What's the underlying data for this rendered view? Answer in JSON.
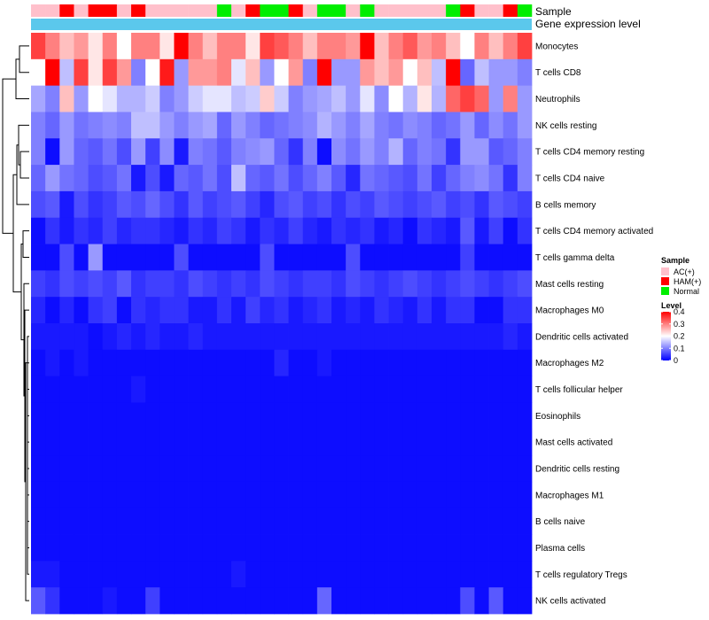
{
  "chart_data": {
    "type": "heatmap",
    "title": "",
    "rows": [
      "Monocytes",
      "T cells CD8",
      "Neutrophils",
      "NK cells resting",
      "T cells CD4 memory resting",
      "T cells CD4 naive",
      "B cells memory",
      "T cells CD4 memory activated",
      "T cells gamma delta",
      "Mast cells resting",
      "Macrophages M0",
      "Dendritic cells activated",
      "Macrophages M2",
      "T cells follicular helper",
      "Eosinophils",
      "Mast cells activated",
      "Dendritic cells resting",
      "Macrophages M1",
      "B cells naive",
      "Plasma cells",
      "T cells regulatory  Tregs",
      "NK cells activated"
    ],
    "n_samples": 35,
    "sample_groups": [
      "AC(+)",
      "AC(+)",
      "HAM(+)",
      "AC(+)",
      "HAM(+)",
      "HAM(+)",
      "AC(+)",
      "HAM(+)",
      "AC(+)",
      "AC(+)",
      "AC(+)",
      "AC(+)",
      "AC(+)",
      "Normal",
      "AC(+)",
      "HAM(+)",
      "Normal",
      "Normal",
      "HAM(+)",
      "AC(+)",
      "Normal",
      "Normal",
      "AC(+)",
      "Normal",
      "AC(+)",
      "AC(+)",
      "AC(+)",
      "AC(+)",
      "AC(+)",
      "Normal",
      "HAM(+)",
      "AC(+)",
      "AC(+)",
      "HAM(+)",
      "Normal"
    ],
    "values": [
      [
        0.35,
        0.3,
        0.25,
        0.28,
        0.22,
        0.3,
        0.2,
        0.3,
        0.3,
        0.22,
        0.4,
        0.3,
        0.25,
        0.3,
        0.3,
        0.22,
        0.35,
        0.33,
        0.3,
        0.25,
        0.3,
        0.3,
        0.28,
        0.4,
        0.25,
        0.3,
        0.33,
        0.28,
        0.3,
        0.25,
        0.2,
        0.3,
        0.25,
        0.3,
        0.35
      ],
      [
        0.2,
        0.4,
        0.15,
        0.35,
        0.22,
        0.35,
        0.28,
        0.1,
        0.2,
        0.38,
        0.12,
        0.28,
        0.28,
        0.3,
        0.18,
        0.25,
        0.12,
        0.2,
        0.28,
        0.1,
        0.4,
        0.12,
        0.12,
        0.28,
        0.25,
        0.28,
        0.2,
        0.25,
        0.15,
        0.4,
        0.08,
        0.15,
        0.12,
        0.12,
        0.1
      ],
      [
        0.13,
        0.1,
        0.25,
        0.12,
        0.2,
        0.18,
        0.14,
        0.14,
        0.16,
        0.1,
        0.12,
        0.16,
        0.18,
        0.18,
        0.15,
        0.16,
        0.24,
        0.16,
        0.1,
        0.12,
        0.13,
        0.15,
        0.12,
        0.18,
        0.11,
        0.2,
        0.14,
        0.22,
        0.14,
        0.32,
        0.35,
        0.32,
        0.12,
        0.3,
        0.12
      ],
      [
        0.1,
        0.08,
        0.12,
        0.09,
        0.1,
        0.11,
        0.1,
        0.15,
        0.15,
        0.12,
        0.1,
        0.12,
        0.13,
        0.08,
        0.12,
        0.1,
        0.08,
        0.09,
        0.1,
        0.11,
        0.14,
        0.12,
        0.1,
        0.13,
        0.1,
        0.09,
        0.11,
        0.1,
        0.08,
        0.09,
        0.12,
        0.08,
        0.11,
        0.09,
        0.12
      ],
      [
        0.1,
        0.01,
        0.12,
        0.08,
        0.07,
        0.09,
        0.06,
        0.12,
        0.05,
        0.11,
        0.02,
        0.1,
        0.09,
        0.07,
        0.1,
        0.11,
        0.12,
        0.08,
        0.04,
        0.1,
        0.01,
        0.11,
        0.09,
        0.12,
        0.1,
        0.14,
        0.08,
        0.1,
        0.09,
        0.04,
        0.12,
        0.12,
        0.07,
        0.08,
        0.1
      ],
      [
        0.08,
        0.12,
        0.09,
        0.08,
        0.06,
        0.07,
        0.09,
        0.02,
        0.06,
        0.02,
        0.08,
        0.07,
        0.09,
        0.06,
        0.15,
        0.08,
        0.07,
        0.09,
        0.06,
        0.08,
        0.1,
        0.07,
        0.03,
        0.09,
        0.08,
        0.07,
        0.06,
        0.09,
        0.05,
        0.08,
        0.1,
        0.11,
        0.09,
        0.04,
        0.1
      ],
      [
        0.06,
        0.07,
        0.02,
        0.06,
        0.04,
        0.05,
        0.07,
        0.06,
        0.08,
        0.06,
        0.04,
        0.07,
        0.05,
        0.06,
        0.07,
        0.05,
        0.03,
        0.06,
        0.07,
        0.05,
        0.06,
        0.04,
        0.06,
        0.05,
        0.07,
        0.06,
        0.05,
        0.06,
        0.07,
        0.05,
        0.06,
        0.04,
        0.07,
        0.06,
        0.05
      ],
      [
        0.01,
        0.04,
        0.02,
        0.04,
        0.03,
        0.05,
        0.03,
        0.04,
        0.04,
        0.03,
        0.02,
        0.04,
        0.03,
        0.05,
        0.04,
        0.02,
        0.04,
        0.03,
        0.05,
        0.03,
        0.02,
        0.04,
        0.03,
        0.04,
        0.02,
        0.03,
        0.01,
        0.04,
        0.03,
        0.02,
        0.07,
        0.02,
        0.05,
        0.01,
        0.04
      ],
      [
        0.01,
        0.01,
        0.06,
        0.01,
        0.12,
        0.01,
        0.01,
        0.01,
        0.01,
        0.01,
        0.06,
        0.01,
        0.01,
        0.01,
        0.01,
        0.01,
        0.06,
        0.01,
        0.01,
        0.01,
        0.01,
        0.01,
        0.06,
        0.01,
        0.01,
        0.01,
        0.01,
        0.01,
        0.01,
        0.01,
        0.05,
        0.01,
        0.01,
        0.01,
        0.01
      ],
      [
        0.05,
        0.04,
        0.06,
        0.05,
        0.06,
        0.05,
        0.07,
        0.04,
        0.05,
        0.05,
        0.04,
        0.06,
        0.05,
        0.04,
        0.05,
        0.04,
        0.06,
        0.05,
        0.04,
        0.05,
        0.05,
        0.04,
        0.06,
        0.05,
        0.04,
        0.05,
        0.06,
        0.05,
        0.04,
        0.05,
        0.06,
        0.05,
        0.04,
        0.05,
        0.06
      ],
      [
        0.03,
        0.01,
        0.03,
        0.01,
        0.04,
        0.05,
        0.01,
        0.04,
        0.03,
        0.04,
        0.04,
        0.02,
        0.02,
        0.04,
        0.02,
        0.05,
        0.03,
        0.04,
        0.02,
        0.03,
        0.04,
        0.02,
        0.03,
        0.02,
        0.04,
        0.03,
        0.02,
        0.04,
        0.02,
        0.04,
        0.04,
        0.01,
        0.01,
        0.04,
        0.04
      ],
      [
        0.02,
        0.02,
        0.02,
        0.02,
        0.01,
        0.02,
        0.03,
        0.02,
        0.03,
        0.02,
        0.02,
        0.03,
        0.02,
        0.02,
        0.02,
        0.02,
        0.02,
        0.02,
        0.02,
        0.02,
        0.02,
        0.02,
        0.02,
        0.02,
        0.02,
        0.02,
        0.02,
        0.02,
        0.02,
        0.02,
        0.02,
        0.02,
        0.02,
        0.03,
        0.02
      ],
      [
        0.01,
        0.02,
        0.01,
        0.02,
        0.01,
        0.01,
        0.01,
        0.01,
        0.01,
        0.01,
        0.01,
        0.01,
        0.01,
        0.01,
        0.01,
        0.01,
        0.01,
        0.03,
        0.01,
        0.01,
        0.02,
        0.01,
        0.01,
        0.01,
        0.01,
        0.01,
        0.01,
        0.01,
        0.01,
        0.01,
        0.01,
        0.01,
        0.01,
        0.01,
        0.01
      ],
      [
        0.01,
        0.01,
        0.01,
        0.01,
        0.01,
        0.01,
        0.01,
        0.02,
        0.01,
        0.01,
        0.01,
        0.01,
        0.01,
        0.01,
        0.01,
        0.01,
        0.01,
        0.01,
        0.01,
        0.01,
        0.01,
        0.01,
        0.01,
        0.01,
        0.01,
        0.01,
        0.01,
        0.01,
        0.01,
        0.01,
        0.01,
        0.01,
        0.01,
        0.01,
        0.01
      ],
      [
        0.01,
        0.01,
        0.01,
        0.01,
        0.01,
        0.01,
        0.01,
        0.01,
        0.01,
        0.01,
        0.01,
        0.01,
        0.01,
        0.01,
        0.01,
        0.01,
        0.01,
        0.01,
        0.01,
        0.01,
        0.01,
        0.01,
        0.01,
        0.01,
        0.01,
        0.01,
        0.01,
        0.01,
        0.01,
        0.01,
        0.01,
        0.01,
        0.01,
        0.01,
        0.01
      ],
      [
        0.01,
        0.01,
        0.01,
        0.01,
        0.01,
        0.01,
        0.01,
        0.01,
        0.01,
        0.01,
        0.01,
        0.01,
        0.01,
        0.01,
        0.01,
        0.01,
        0.01,
        0.01,
        0.01,
        0.01,
        0.01,
        0.01,
        0.01,
        0.01,
        0.01,
        0.01,
        0.01,
        0.01,
        0.01,
        0.01,
        0.01,
        0.01,
        0.01,
        0.01,
        0.01
      ],
      [
        0.01,
        0.01,
        0.01,
        0.01,
        0.01,
        0.01,
        0.01,
        0.01,
        0.01,
        0.01,
        0.01,
        0.01,
        0.01,
        0.01,
        0.01,
        0.01,
        0.01,
        0.01,
        0.01,
        0.01,
        0.01,
        0.01,
        0.01,
        0.01,
        0.01,
        0.01,
        0.01,
        0.01,
        0.01,
        0.01,
        0.01,
        0.01,
        0.01,
        0.01,
        0.01
      ],
      [
        0.01,
        0.01,
        0.01,
        0.01,
        0.01,
        0.01,
        0.01,
        0.01,
        0.01,
        0.01,
        0.01,
        0.01,
        0.01,
        0.01,
        0.01,
        0.01,
        0.01,
        0.01,
        0.01,
        0.01,
        0.01,
        0.01,
        0.01,
        0.01,
        0.01,
        0.01,
        0.01,
        0.01,
        0.01,
        0.01,
        0.01,
        0.01,
        0.01,
        0.01,
        0.01
      ],
      [
        0.01,
        0.01,
        0.01,
        0.01,
        0.01,
        0.01,
        0.01,
        0.01,
        0.01,
        0.01,
        0.01,
        0.01,
        0.01,
        0.01,
        0.01,
        0.01,
        0.01,
        0.01,
        0.01,
        0.01,
        0.01,
        0.01,
        0.01,
        0.01,
        0.01,
        0.01,
        0.01,
        0.01,
        0.01,
        0.01,
        0.01,
        0.01,
        0.01,
        0.01,
        0.01
      ],
      [
        0.01,
        0.01,
        0.01,
        0.01,
        0.01,
        0.01,
        0.01,
        0.01,
        0.01,
        0.01,
        0.01,
        0.01,
        0.01,
        0.01,
        0.01,
        0.01,
        0.01,
        0.01,
        0.01,
        0.01,
        0.01,
        0.01,
        0.01,
        0.01,
        0.01,
        0.01,
        0.01,
        0.01,
        0.01,
        0.01,
        0.01,
        0.01,
        0.01,
        0.01,
        0.01
      ],
      [
        0.02,
        0.02,
        0.01,
        0.01,
        0.01,
        0.01,
        0.01,
        0.01,
        0.01,
        0.01,
        0.01,
        0.01,
        0.01,
        0.01,
        0.02,
        0.01,
        0.01,
        0.01,
        0.01,
        0.01,
        0.01,
        0.01,
        0.01,
        0.01,
        0.01,
        0.01,
        0.01,
        0.01,
        0.01,
        0.01,
        0.01,
        0.01,
        0.01,
        0.01,
        0.01
      ],
      [
        0.07,
        0.04,
        0.01,
        0.01,
        0.01,
        0.02,
        0.01,
        0.01,
        0.05,
        0.01,
        0.01,
        0.01,
        0.01,
        0.01,
        0.01,
        0.01,
        0.01,
        0.01,
        0.01,
        0.01,
        0.08,
        0.01,
        0.01,
        0.01,
        0.01,
        0.01,
        0.01,
        0.01,
        0.01,
        0.01,
        0.06,
        0.01,
        0.07,
        0.01,
        0.01
      ]
    ],
    "color_scale": {
      "min": 0,
      "max": 0.4,
      "stops": [
        {
          "value": 0,
          "color": "#0000ff"
        },
        {
          "value": 0.2,
          "color": "#ffffff"
        },
        {
          "value": 0.4,
          "color": "#ff0000"
        }
      ]
    },
    "annotations": {
      "sample_label": "Sample",
      "expression_label": "Gene expression level",
      "expression_color": "#5bc8ec"
    },
    "legend": {
      "sample": {
        "title": "Sample",
        "entries": [
          {
            "label": "AC(+)",
            "color": "#ffc0cb"
          },
          {
            "label": "HAM(+)",
            "color": "#ff0000"
          },
          {
            "label": "Normal",
            "color": "#00ee00"
          }
        ]
      },
      "level": {
        "title": "Level",
        "ticks": [
          0.4,
          0.3,
          0.2,
          0.1,
          0
        ]
      }
    }
  }
}
